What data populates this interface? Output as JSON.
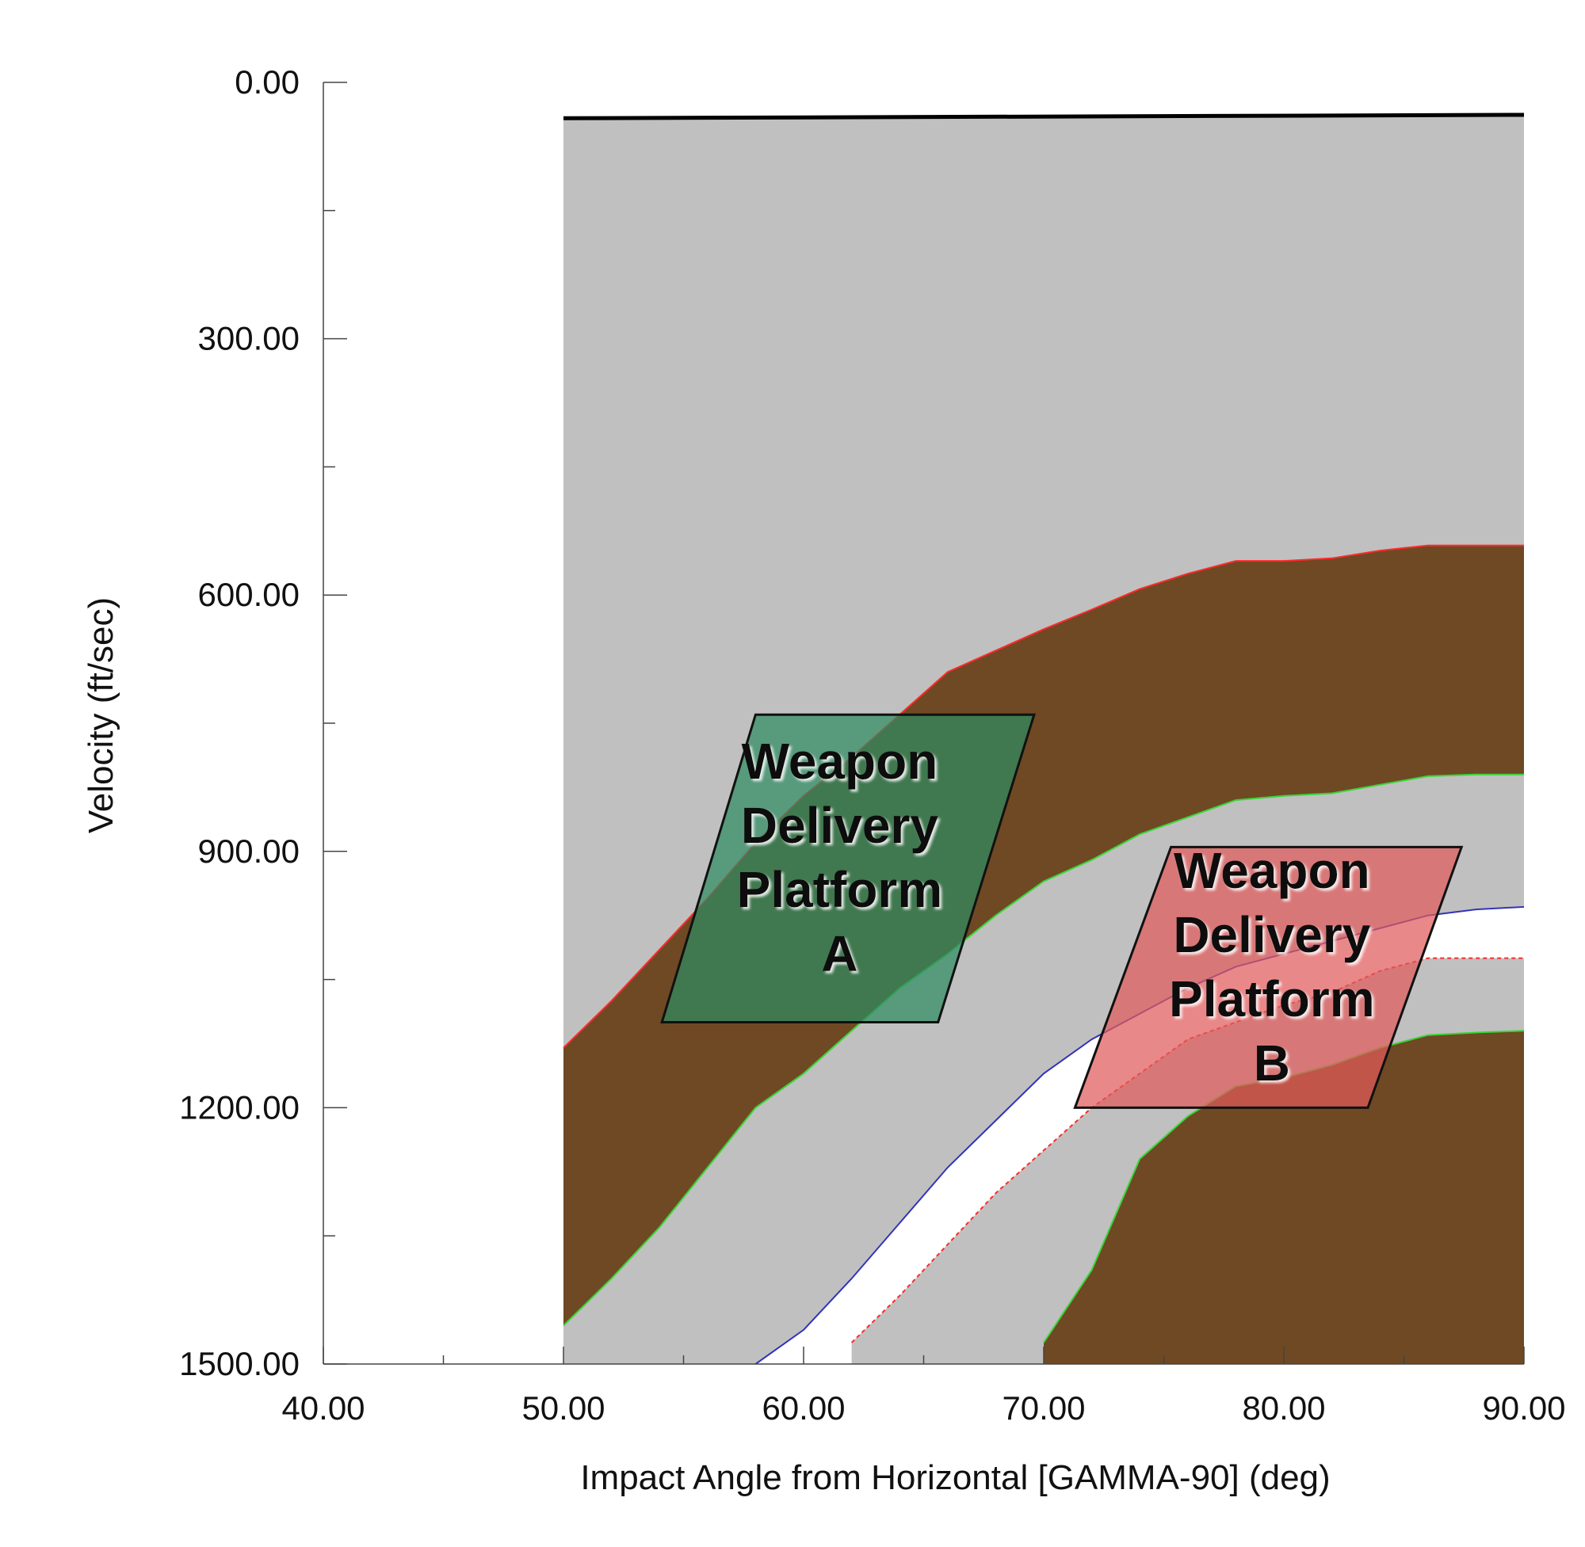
{
  "chart_data": {
    "type": "area",
    "title": "",
    "xlabel": "Impact Angle from Horizontal [GAMMA-90] (deg)",
    "ylabel": "Velocity (ft/sec)",
    "xlim": [
      40,
      90
    ],
    "ylim": [
      0,
      1500
    ],
    "y_inverted": true,
    "grid": false,
    "x_ticks": [
      40,
      50,
      60,
      70,
      80,
      90
    ],
    "x_tick_labels": [
      "40.00",
      "50.00",
      "60.00",
      "70.00",
      "80.00",
      "90.00"
    ],
    "x_minor_ticks": [
      45,
      55,
      65,
      75,
      85
    ],
    "y_ticks": [
      0,
      300,
      600,
      900,
      1200,
      1500
    ],
    "y_tick_labels": [
      "0.00",
      "300.00",
      "600.00",
      "900.00",
      "1200.00",
      "1500.00"
    ],
    "y_minor_ticks": [
      150,
      450,
      750,
      1050,
      1350
    ],
    "colors": {
      "region_gray": "#c0c0c0",
      "band_brown": "#6f4923",
      "gap_white": "#ffffff",
      "boundary_red": "#ff2a2a",
      "boundary_green": "#39d639",
      "boundary_blue": "#3333bb",
      "top_line": "#000000",
      "platform_a": "#2e8b61",
      "platform_b": "#e05a5a"
    },
    "gray_region": {
      "x": [
        50,
        90
      ],
      "top_y": [
        42,
        38
      ]
    },
    "series": [
      {
        "boundary": "upper-band top (red)",
        "x": [
          50,
          52,
          54,
          56,
          58,
          60,
          62,
          64,
          66,
          68,
          70,
          72,
          74,
          76,
          78,
          80,
          82,
          84,
          86,
          88,
          90
        ],
        "values": [
          1130,
          1075,
          1015,
          955,
          890,
          835,
          790,
          740,
          690,
          665,
          640,
          617,
          593,
          575,
          560,
          560,
          557,
          548,
          542,
          542,
          542
        ]
      },
      {
        "boundary": "upper-band bottom (green)",
        "x": [
          50,
          52,
          54,
          56,
          58,
          60,
          62,
          64,
          66,
          68,
          70,
          72,
          74,
          76,
          78,
          80,
          82,
          84,
          86,
          88,
          90
        ],
        "values": [
          1455,
          1400,
          1340,
          1270,
          1200,
          1160,
          1110,
          1060,
          1020,
          975,
          935,
          910,
          880,
          860,
          840,
          835,
          832,
          822,
          812,
          810,
          810
        ]
      },
      {
        "boundary": "white gap top (blue)",
        "x": [
          58,
          60,
          62,
          64,
          66,
          68,
          70,
          72,
          74,
          76,
          78,
          80,
          82,
          84,
          86,
          88,
          90
        ],
        "values": [
          1500,
          1460,
          1400,
          1335,
          1270,
          1215,
          1160,
          1120,
          1090,
          1060,
          1035,
          1020,
          1005,
          990,
          975,
          968,
          965
        ]
      },
      {
        "boundary": "white gap bottom (red dashed)",
        "x": [
          62,
          64,
          66,
          68,
          70,
          72,
          74,
          76,
          78,
          80,
          82,
          84,
          86,
          88,
          90
        ],
        "values": [
          1475,
          1420,
          1360,
          1300,
          1250,
          1200,
          1160,
          1120,
          1100,
          1080,
          1065,
          1040,
          1025,
          1025,
          1025
        ]
      },
      {
        "boundary": "lower-band top (green)",
        "x": [
          70,
          72,
          74,
          76,
          78,
          80,
          82,
          84,
          86,
          88,
          90
        ],
        "values": [
          1475,
          1390,
          1260,
          1210,
          1175,
          1165,
          1150,
          1130,
          1115,
          1112,
          1110
        ]
      }
    ],
    "annotations": [
      {
        "id": "platform-a",
        "lines": [
          "Weapon",
          "Delivery",
          "Platform",
          "A"
        ],
        "x": [
          54.1,
          65.6,
          69.6,
          58.0
        ],
        "y": [
          1100,
          1100,
          740,
          740
        ],
        "label_x": 61.5,
        "label_y": [
          815,
          890,
          965,
          1040
        ]
      },
      {
        "id": "platform-b",
        "lines": [
          "Weapon",
          "Delivery",
          "Platform",
          "B"
        ],
        "x": [
          71.3,
          83.5,
          87.4,
          75.3
        ],
        "y": [
          1200,
          1200,
          895,
          895
        ],
        "label_x": 79.5,
        "label_y": [
          943,
          1018,
          1093,
          1168
        ]
      }
    ]
  }
}
